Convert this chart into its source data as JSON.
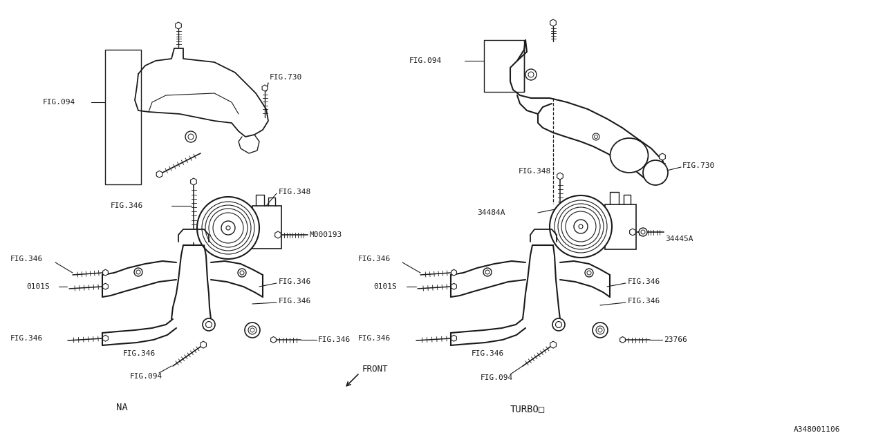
{
  "bg_color": "#ffffff",
  "line_color": "#1a1a1a",
  "fig_width": 12.8,
  "fig_height": 6.4,
  "dpi": 100,
  "labels": {
    "na": "NA",
    "turbo": "TURBO□",
    "bottom_right": "A348001106",
    "front": "FRONT"
  }
}
